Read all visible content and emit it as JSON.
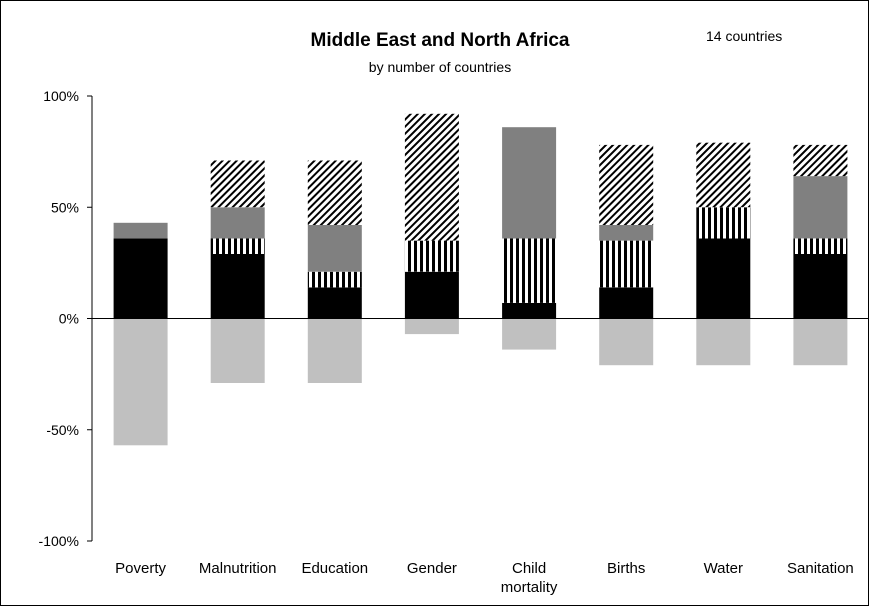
{
  "chart_data": {
    "type": "bar",
    "stacked": true,
    "title": "Middle East and North Africa",
    "subtitle": "by number of countries",
    "annotation": "14 countries",
    "categories": [
      "Poverty",
      "Malnutrition",
      "Education",
      "Gender",
      "Child mortality",
      "Births",
      "Water",
      "Sanitation"
    ],
    "category_lines": [
      [
        "Poverty"
      ],
      [
        "Malnutrition"
      ],
      [
        "Education"
      ],
      [
        "Gender"
      ],
      [
        "Child",
        "mortality"
      ],
      [
        "Births"
      ],
      [
        "Water"
      ],
      [
        "Sanitation"
      ]
    ],
    "ylim": [
      -100,
      100
    ],
    "yticks": [
      100,
      50,
      0,
      -50,
      -100
    ],
    "ytick_labels": [
      "100%",
      "50%",
      "0%",
      "-50%",
      "-100%"
    ],
    "grid": false,
    "legend": "none",
    "series": [
      {
        "pattern": "solid",
        "color": "#000000",
        "values": [
          36,
          29,
          14,
          21,
          7,
          14,
          36,
          29
        ]
      },
      {
        "pattern": "vertical-stripes",
        "color": "#000000",
        "values": [
          0,
          7,
          7,
          14,
          29,
          21,
          14,
          7
        ]
      },
      {
        "pattern": "solid",
        "color": "#808080",
        "values": [
          7,
          14,
          21,
          0,
          50,
          7,
          0,
          28
        ]
      },
      {
        "pattern": "diagonal-hatch",
        "color": "#000000",
        "values": [
          0,
          21,
          29,
          57,
          0,
          36,
          29,
          14
        ]
      },
      {
        "pattern": "solid",
        "color": "#c0c0c0",
        "values": [
          -57,
          -29,
          -29,
          -7,
          -14,
          -21,
          -21,
          -21
        ]
      }
    ]
  }
}
